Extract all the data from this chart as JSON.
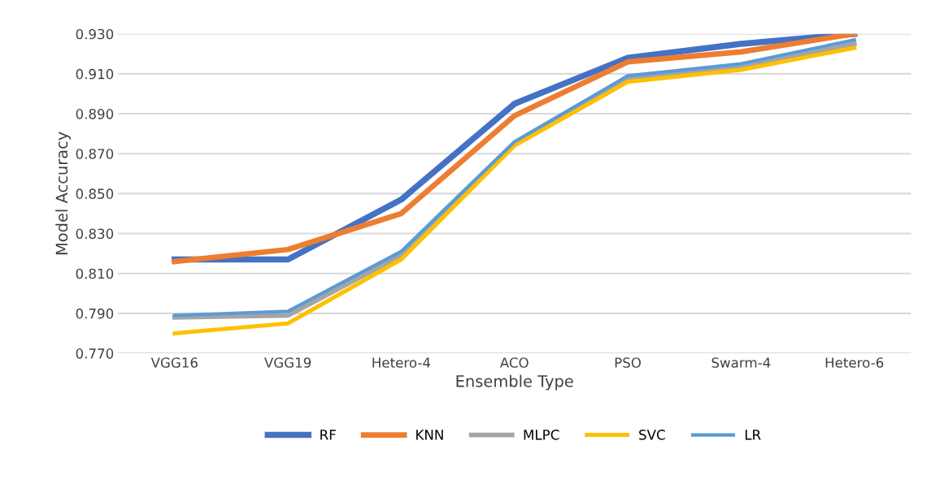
{
  "chart_data": {
    "type": "line",
    "xlabel": "Ensemble Type",
    "ylabel": "Model Accuracy",
    "categories": [
      "VGG16",
      "VGG19",
      "Hetero-4",
      "ACO",
      "PSO",
      "Swarm-4",
      "Hetero-6"
    ],
    "series": [
      {
        "name": "RF",
        "color": "#4472c4",
        "values": [
          0.817,
          0.817,
          0.847,
          0.895,
          0.918,
          0.925,
          0.93
        ]
      },
      {
        "name": "KNN",
        "color": "#ed7d31",
        "values": [
          0.816,
          0.822,
          0.84,
          0.889,
          0.916,
          0.921,
          0.93
        ]
      },
      {
        "name": "MLPC",
        "color": "#a5a5a5",
        "values": [
          0.788,
          0.789,
          0.819,
          0.875,
          0.908,
          0.913,
          0.925
        ]
      },
      {
        "name": "SVC",
        "color": "#ffc000",
        "values": [
          0.78,
          0.785,
          0.817,
          0.874,
          0.906,
          0.912,
          0.923
        ]
      },
      {
        "name": "LR",
        "color": "#5b9bd5",
        "values": [
          0.789,
          0.791,
          0.821,
          0.876,
          0.909,
          0.915,
          0.927
        ]
      }
    ],
    "ylim": [
      0.77,
      0.93
    ],
    "yticks": [
      {
        "value": 0.77,
        "label": "0.770"
      },
      {
        "value": 0.79,
        "label": "0.790"
      },
      {
        "value": 0.81,
        "label": "0.810"
      },
      {
        "value": 0.83,
        "label": "0.830"
      },
      {
        "value": 0.85,
        "label": "0.850"
      },
      {
        "value": 0.87,
        "label": "0.870"
      },
      {
        "value": 0.89,
        "label": "0.890"
      },
      {
        "value": 0.91,
        "label": "0.910"
      },
      {
        "value": 0.93,
        "label": "0.930"
      }
    ],
    "grid": "y",
    "legend": "bottom",
    "marker": "none",
    "line_style": "solid"
  }
}
